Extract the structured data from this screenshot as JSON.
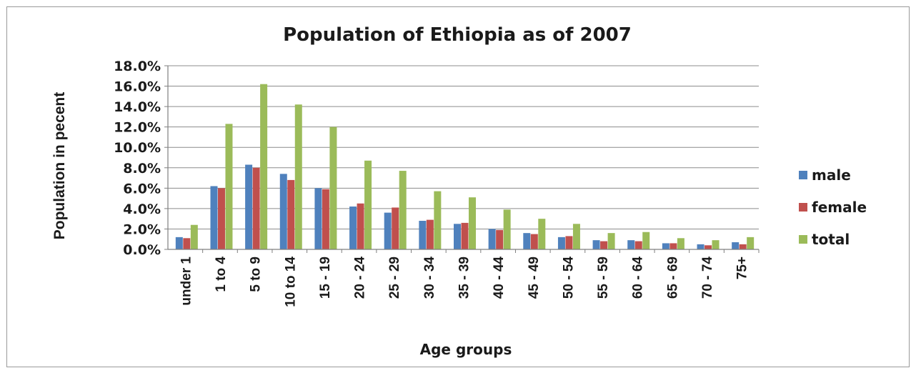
{
  "chart_data": {
    "type": "bar",
    "title": "Population of Ethiopia as of 2007",
    "xlabel": "Age groups",
    "ylabel": "Population in pecent",
    "ylim": [
      0,
      18
    ],
    "yticks": [
      "0.0%",
      "2.0%",
      "4.0%",
      "6.0%",
      "8.0%",
      "10.0%",
      "12.0%",
      "14.0%",
      "16.0%",
      "18.0%"
    ],
    "grid": true,
    "legend_position": "right",
    "categories": [
      "under 1",
      "1 to 4",
      "5 to 9",
      "10 to 14",
      "15 - 19",
      "20 - 24",
      "25 - 29",
      "30 - 34",
      "35 - 39",
      "40 - 44",
      "45 - 49",
      "50 - 54",
      "55 - 59",
      "60 - 64",
      "65 - 69",
      "70 - 74",
      "75+"
    ],
    "series": [
      {
        "name": "male",
        "color": "#4f81bd",
        "values": [
          1.2,
          6.2,
          8.3,
          7.4,
          6.0,
          4.2,
          3.6,
          2.8,
          2.5,
          2.0,
          1.6,
          1.2,
          0.9,
          0.9,
          0.6,
          0.5,
          0.7
        ]
      },
      {
        "name": "female",
        "color": "#c0504d",
        "values": [
          1.1,
          6.0,
          8.0,
          6.8,
          5.9,
          4.5,
          4.1,
          2.9,
          2.6,
          1.9,
          1.5,
          1.3,
          0.8,
          0.8,
          0.6,
          0.4,
          0.5
        ]
      },
      {
        "name": "total",
        "color": "#9bbb59",
        "values": [
          2.4,
          12.3,
          16.2,
          14.2,
          12.0,
          8.7,
          7.7,
          5.7,
          5.1,
          3.9,
          3.0,
          2.5,
          1.6,
          1.7,
          1.1,
          0.9,
          1.2
        ]
      }
    ]
  }
}
